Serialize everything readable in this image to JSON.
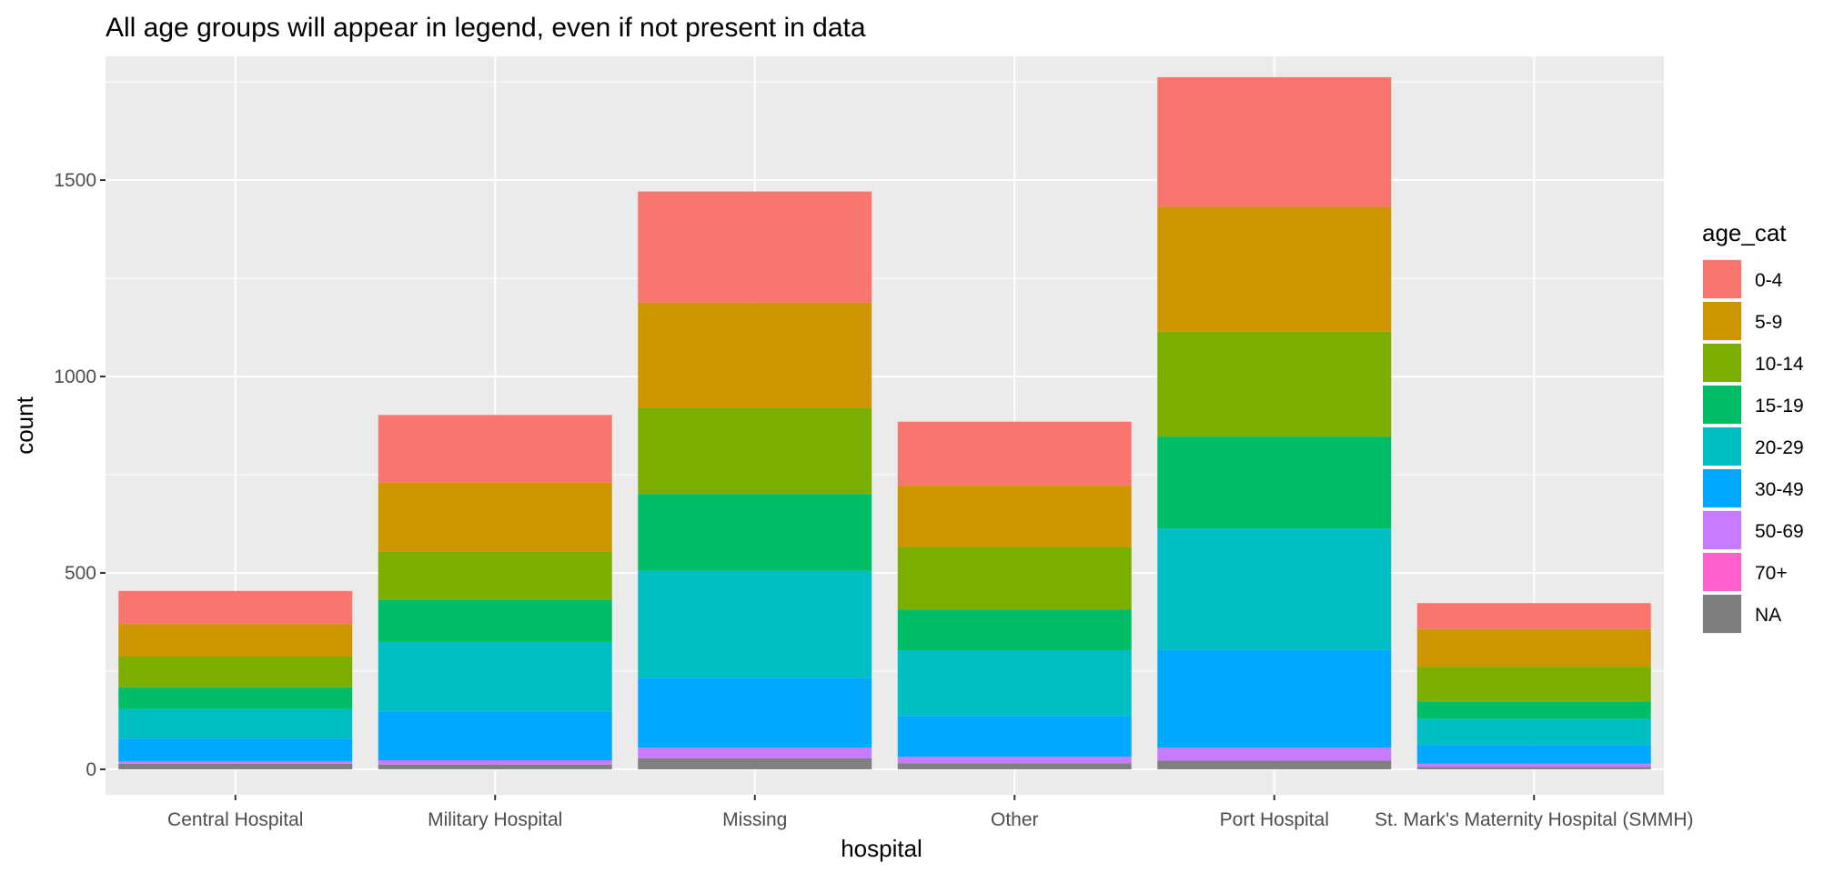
{
  "chart_data": {
    "type": "bar",
    "stacked": true,
    "title": "All age groups will appear in legend, even if not present in data",
    "xlabel": "hospital",
    "ylabel": "count",
    "ylim": [
      -65,
      1815
    ],
    "yticks": [
      0,
      500,
      1000,
      1500
    ],
    "grid": true,
    "legend_position": "right",
    "legend_title": "age_cat",
    "categories": [
      "Central Hospital",
      "Military Hospital",
      "Missing",
      "Other",
      "Port Hospital",
      "St. Mark's Maternity Hospital (SMMH)"
    ],
    "series": [
      {
        "name": "0-4",
        "color": "#F8766D",
        "values": [
          84,
          172,
          283,
          162,
          330,
          66
        ]
      },
      {
        "name": "5-9",
        "color": "#CD9600",
        "values": [
          83,
          175,
          267,
          157,
          318,
          96
        ]
      },
      {
        "name": "10-14",
        "color": "#7CAE00",
        "values": [
          78,
          123,
          220,
          159,
          267,
          88
        ]
      },
      {
        "name": "15-19",
        "color": "#00BE67",
        "values": [
          56,
          108,
          196,
          104,
          234,
          45
        ]
      },
      {
        "name": "20-29",
        "color": "#00BFC4",
        "values": [
          75,
          177,
          272,
          167,
          309,
          66
        ]
      },
      {
        "name": "30-49",
        "color": "#00A9FF",
        "values": [
          58,
          124,
          178,
          104,
          249,
          48
        ]
      },
      {
        "name": "50-69",
        "color": "#C77CFF",
        "values": [
          6,
          11,
          27,
          17,
          33,
          8
        ]
      },
      {
        "name": "70+",
        "color": "#FF61CC",
        "values": [
          0,
          0,
          0,
          0,
          0,
          0
        ]
      },
      {
        "name": "NA",
        "color": "#7F7F7F",
        "values": [
          14,
          12,
          28,
          15,
          22,
          6
        ]
      }
    ]
  }
}
